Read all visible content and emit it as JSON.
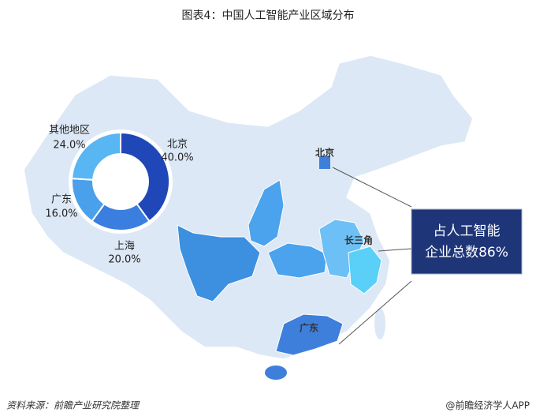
{
  "chart_data": {
    "type": "donut",
    "title": "图表4：中国人工智能产业区域分布",
    "categories": [
      "北京",
      "上海",
      "广东",
      "其他地区"
    ],
    "values": [
      40,
      20,
      16,
      24
    ],
    "value_labels": [
      "40.0%",
      "20.0%",
      "16.0%",
      "24.0%"
    ],
    "colors": [
      "#1f47b8",
      "#3a7fe0",
      "#4aa0ea",
      "#58b6f2"
    ]
  },
  "map_labels": [
    "北京",
    "长三角",
    "广东"
  ],
  "callout": [
    "占人工智能",
    "企业总数86%"
  ],
  "source": "资料来源：前瞻产业研究院整理",
  "brand": "@前瞻经济学人APP"
}
